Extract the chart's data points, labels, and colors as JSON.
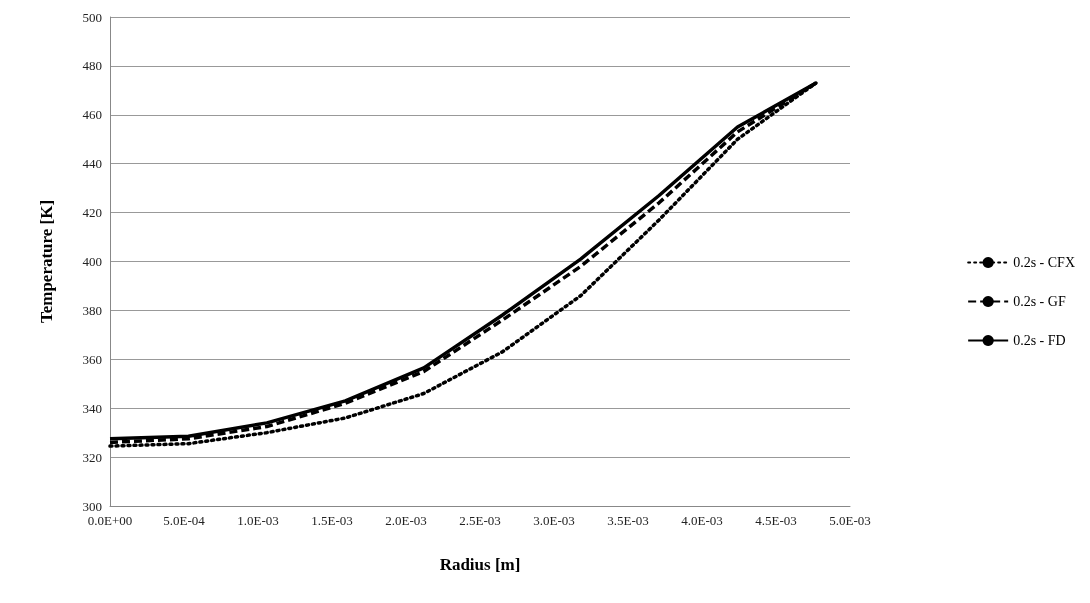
{
  "chart_data": {
    "type": "line",
    "xlabel": "Radius [m]",
    "ylabel": "Temperature [K]",
    "x": [
      0,
      0.00053,
      0.00106,
      0.00159,
      0.00212,
      0.00265,
      0.00318,
      0.00371,
      0.00424,
      0.00477
    ],
    "series": [
      {
        "name": "0.2s - CFX",
        "color": "#000000",
        "line_style": "dotted",
        "values": [
          324.5,
          325.5,
          330,
          336,
          346,
          363,
          386,
          417,
          450,
          473
        ]
      },
      {
        "name": "0.2s - GF",
        "color": "#000000",
        "line_style": "dashed",
        "values": [
          326,
          327.5,
          332.5,
          342,
          355,
          376,
          398,
          424,
          453,
          473
        ]
      },
      {
        "name": "0.2s - FD",
        "color": "#000000",
        "line_style": "solid",
        "values": [
          327.5,
          328.5,
          334,
          343,
          356.5,
          378,
          401,
          427,
          455,
          473
        ]
      }
    ],
    "xlim": [
      0,
      0.005
    ],
    "xticks": [
      {
        "value": 0,
        "label": "0.0E+00"
      },
      {
        "value": 0.0005,
        "label": "5.0E-04"
      },
      {
        "value": 0.001,
        "label": "1.0E-03"
      },
      {
        "value": 0.0015,
        "label": "1.5E-03"
      },
      {
        "value": 0.002,
        "label": "2.0E-03"
      },
      {
        "value": 0.0025,
        "label": "2.5E-03"
      },
      {
        "value": 0.003,
        "label": "3.0E-03"
      },
      {
        "value": 0.0035,
        "label": "3.5E-03"
      },
      {
        "value": 0.004,
        "label": "4.0E-03"
      },
      {
        "value": 0.0045,
        "label": "4.5E-03"
      },
      {
        "value": 0.005,
        "label": "5.0E-03"
      }
    ],
    "ylim": [
      300,
      500
    ],
    "yticks": [
      300,
      320,
      340,
      360,
      380,
      400,
      420,
      440,
      460,
      480,
      500
    ],
    "grid": "y",
    "legend": "right",
    "marker": "none"
  }
}
